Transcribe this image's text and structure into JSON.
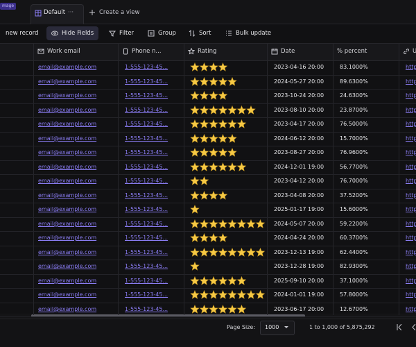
{
  "top_bar": {
    "badge": "mage",
    "tab": "Default",
    "tab_menu": "···",
    "create_view": "Create a view"
  },
  "toolbar": {
    "new_record": "new record",
    "hide_fields": "Hide Fields",
    "filter": "Filter",
    "group": "Group",
    "sort": "Sort",
    "bulk_update": "Bulk update"
  },
  "table": {
    "columns": [
      "Work email",
      "Phone n...",
      "Rating",
      "Date",
      "% percent",
      "U"
    ],
    "rows": [
      {
        "email": "email@example.com",
        "phone": "1-555-123-45...",
        "rating": 4,
        "date": "2023-04-16 20:00",
        "percent": "83.1000%",
        "url": "http"
      },
      {
        "email": "email@example.com",
        "phone": "1-555-123-45...",
        "rating": 5,
        "date": "2024-05-27 20:00",
        "percent": "89.6300%",
        "url": "http"
      },
      {
        "email": "email@example.com",
        "phone": "1-555-123-45...",
        "rating": 4,
        "date": "2023-10-24 20:00",
        "percent": "24.6300%",
        "url": "http"
      },
      {
        "email": "email@example.com",
        "phone": "1-555-123-45...",
        "rating": 7,
        "date": "2023-08-10 20:00",
        "percent": "23.8700%",
        "url": "http"
      },
      {
        "email": "email@example.com",
        "phone": "1-555-123-45...",
        "rating": 6,
        "date": "2023-04-17 20:00",
        "percent": "76.5000%",
        "url": "http"
      },
      {
        "email": "email@example.com",
        "phone": "1-555-123-45...",
        "rating": 5,
        "date": "2024-06-12 20:00",
        "percent": "15.7000%",
        "url": "http"
      },
      {
        "email": "email@example.com",
        "phone": "1-555-123-45...",
        "rating": 5,
        "date": "2023-08-27 20:00",
        "percent": "76.9600%",
        "url": "http"
      },
      {
        "email": "email@example.com",
        "phone": "1-555-123-45...",
        "rating": 6,
        "date": "2024-12-01 19:00",
        "percent": "56.7700%",
        "url": "http"
      },
      {
        "email": "email@example.com",
        "phone": "1-555-123-45...",
        "rating": 2,
        "date": "2023-04-12 20:00",
        "percent": "76.7000%",
        "url": "http"
      },
      {
        "email": "email@example.com",
        "phone": "1-555-123-45...",
        "rating": 4,
        "date": "2023-04-08 20:00",
        "percent": "37.5200%",
        "url": "http"
      },
      {
        "email": "email@example.com",
        "phone": "1-555-123-45...",
        "rating": 1,
        "date": "2025-01-17 19:00",
        "percent": "15.6000%",
        "url": "http"
      },
      {
        "email": "email@example.com",
        "phone": "1-555-123-45...",
        "rating": 8,
        "date": "2024-05-07 20:00",
        "percent": "59.2200%",
        "url": "http"
      },
      {
        "email": "email@example.com",
        "phone": "1-555-123-45...",
        "rating": 4,
        "date": "2024-04-24 20:00",
        "percent": "60.3700%",
        "url": "http"
      },
      {
        "email": "email@example.com",
        "phone": "1-555-123-45...",
        "rating": 8,
        "date": "2023-12-13 19:00",
        "percent": "62.4400%",
        "url": "http"
      },
      {
        "email": "email@example.com",
        "phone": "1-555-123-45...",
        "rating": 1,
        "date": "2023-12-28 19:00",
        "percent": "82.9300%",
        "url": "http"
      },
      {
        "email": "email@example.com",
        "phone": "1-555-123-45...",
        "rating": 6,
        "date": "2025-09-10 20:00",
        "percent": "37.1000%",
        "url": "http"
      },
      {
        "email": "email@example.com",
        "phone": "1-555-123-45...",
        "rating": 8,
        "date": "2024-01-01 19:00",
        "percent": "57.8000%",
        "url": "http"
      },
      {
        "email": "email@example.com",
        "phone": "1-555-123-45...",
        "rating": 6,
        "date": "2023-06-17 20:00",
        "percent": "12.6700%",
        "url": "http"
      }
    ]
  },
  "footer": {
    "page_size_label": "Page Size:",
    "page_size": "1000",
    "range": "1 to 1,000 of 5,875,292"
  }
}
